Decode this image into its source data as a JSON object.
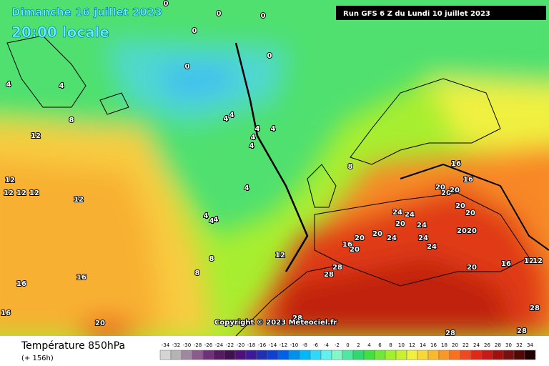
{
  "header": {
    "date": "Dimanche 16 juillet 2023",
    "time": "20:00 locale",
    "run": "Run GFS 6 Z du Lundi 10 juillet 2023"
  },
  "copyright": "Copyright © 2023 Meteociel.fr",
  "footer": {
    "title": "Température 850hPa",
    "lead": "(+ 156h)"
  },
  "contour_labels": [
    0,
    0,
    0,
    0,
    0,
    0,
    4,
    4,
    4,
    4,
    4,
    4,
    4,
    4,
    4,
    4,
    4,
    4,
    8,
    8,
    8,
    8,
    12,
    12,
    12,
    12,
    12,
    12,
    12,
    12,
    12,
    16,
    16,
    16,
    16,
    16,
    16,
    16,
    20,
    20,
    20,
    20,
    20,
    20,
    20,
    20,
    20,
    20,
    20,
    20,
    20,
    24,
    24,
    24,
    24,
    24,
    24,
    28,
    28,
    28,
    28,
    28,
    28
  ],
  "colorbar": {
    "values": [
      -34,
      -32,
      -30,
      -28,
      -26,
      -24,
      -22,
      -20,
      -18,
      -16,
      -14,
      -12,
      -10,
      -8,
      -6,
      -4,
      -2,
      0,
      2,
      4,
      6,
      8,
      10,
      12,
      14,
      16,
      18,
      20,
      22,
      24,
      26,
      28,
      30,
      32,
      34
    ],
    "colors": [
      "#d4d4d4",
      "#b4b4b4",
      "#a088a0",
      "#8c5a8c",
      "#70307a",
      "#561a60",
      "#401050",
      "#50107a",
      "#3c1a9a",
      "#2030b0",
      "#1040d0",
      "#0060e8",
      "#0090f0",
      "#00b8f8",
      "#30d8f8",
      "#60f0f0",
      "#80f8c8",
      "#50e8a0",
      "#30d870",
      "#40e040",
      "#70e838",
      "#a0f030",
      "#c8f030",
      "#f0f040",
      "#f8d838",
      "#f8b830",
      "#f89828",
      "#f87020",
      "#f04820",
      "#e02818",
      "#c81818",
      "#a01010",
      "#781010",
      "#500808",
      "#200000"
    ]
  }
}
